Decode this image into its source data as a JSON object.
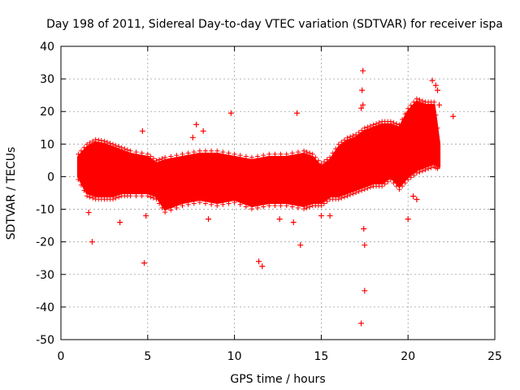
{
  "chart_data": {
    "type": "scatter",
    "title": "Day 198 of 2011, Sidereal Day-to-day VTEC variation (SDTVAR) for receiver ispa",
    "xlabel": "GPS time / hours",
    "ylabel": "SDTVAR / TECUs",
    "xlim": [
      0,
      25
    ],
    "ylim": [
      -50,
      40
    ],
    "xticks": [
      0,
      5,
      10,
      15,
      20,
      25
    ],
    "yticks": [
      -50,
      -40,
      -30,
      -20,
      -10,
      0,
      10,
      20,
      30,
      40
    ],
    "grid": true,
    "marker": "+",
    "color": "#ff0000",
    "band": {
      "x": [
        1.0,
        1.5,
        2.0,
        2.5,
        3.0,
        3.5,
        4.0,
        5.0,
        5.5,
        6.0,
        7.0,
        8.0,
        9.0,
        10.0,
        11.0,
        12.0,
        13.0,
        14.0,
        14.5,
        15.0,
        15.5,
        16.0,
        16.5,
        17.0,
        17.5,
        18.0,
        18.5,
        19.0,
        19.5,
        20.0,
        20.5,
        21.0,
        21.5,
        21.8
      ],
      "upper": [
        6,
        9,
        10.5,
        10,
        9,
        8,
        7,
        6,
        4,
        5,
        6,
        7,
        7,
        6,
        5,
        6,
        6,
        7,
        6,
        3,
        5,
        9,
        11,
        12,
        14,
        15,
        16,
        16,
        15,
        20,
        23,
        22,
        22,
        10
      ],
      "lower": [
        0,
        -5,
        -6,
        -6,
        -6,
        -5,
        -5,
        -5,
        -6,
        -10,
        -8,
        -7,
        -8,
        -7,
        -9,
        -8,
        -8,
        -9,
        -8,
        -8,
        -6,
        -6,
        -5,
        -4,
        -3,
        -2,
        -2,
        0,
        -3,
        0,
        2,
        3,
        4,
        3
      ]
    },
    "outliers": {
      "x": [
        1.6,
        1.8,
        3.4,
        4.7,
        4.8,
        4.9,
        7.6,
        7.8,
        8.2,
        8.5,
        9.8,
        11.4,
        11.6,
        12.6,
        13.4,
        13.6,
        13.8,
        15.0,
        15.5,
        17.3,
        17.35,
        17.4,
        17.45,
        17.5,
        17.5,
        17.3,
        17.4,
        20.0,
        20.3,
        20.5,
        21.4,
        21.6,
        21.7,
        21.8,
        22.6
      ],
      "y": [
        -11,
        -20,
        -14,
        14,
        -26.5,
        -12,
        12,
        16,
        14,
        -13,
        19.5,
        -26,
        -27.5,
        -13,
        -14,
        19.5,
        -21,
        -12,
        -12,
        21,
        26.5,
        32.5,
        -16,
        -21,
        -35,
        -45,
        22,
        -13,
        -6,
        -7,
        29.5,
        28,
        26.5,
        22,
        18.5
      ]
    }
  }
}
